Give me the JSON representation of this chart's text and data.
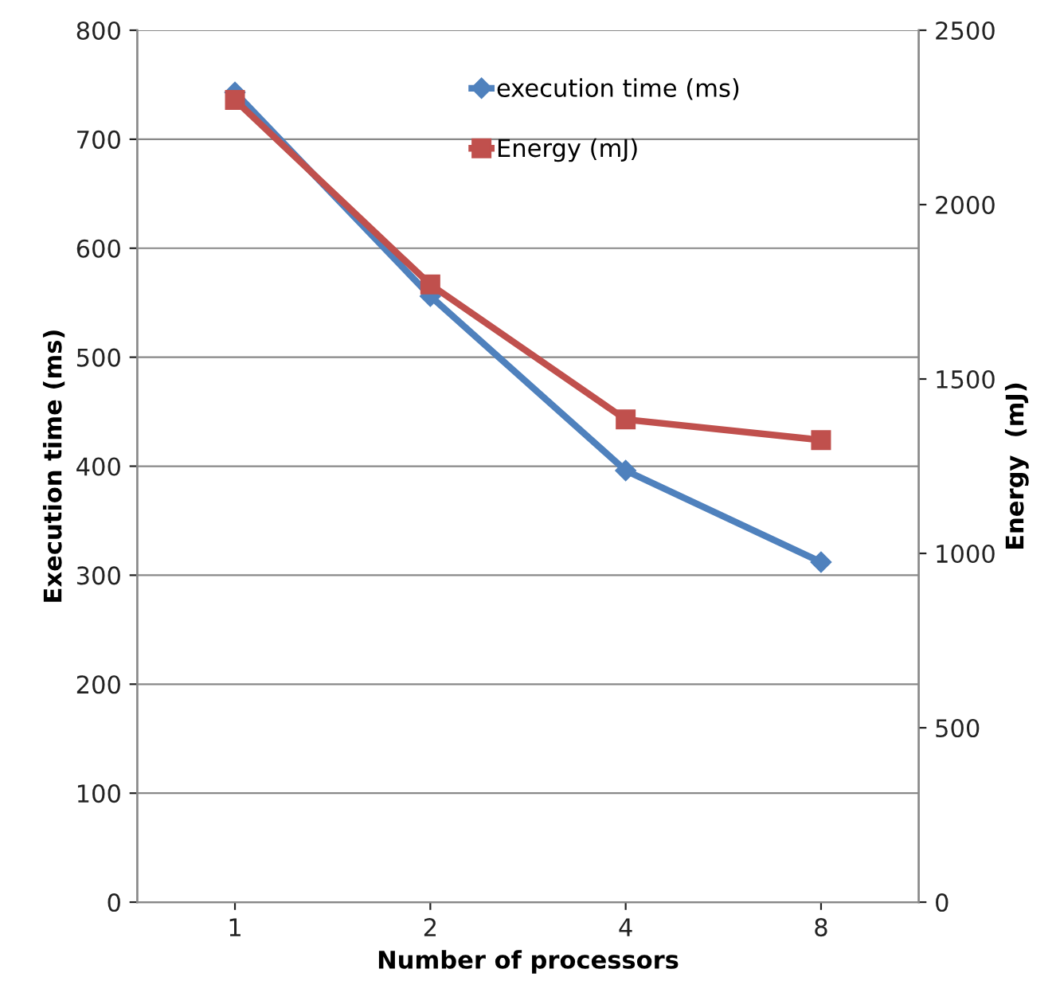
{
  "chart_data": {
    "type": "line",
    "xlabel": "Number of processors",
    "ylabel": "Execution time (ms)",
    "y2label": "Energy  (mJ)",
    "categories": [
      "1",
      "2",
      "4",
      "8"
    ],
    "series": [
      {
        "name": "execution time (ms)",
        "color": "#4f81bd",
        "values": [
          743,
          556,
          396,
          312
        ],
        "marker": "diamond"
      },
      {
        "name": "Energy (mJ)",
        "color": "#c0504d",
        "values": [
          2300,
          1771,
          1384,
          1325
        ],
        "marker": "square",
        "axis": "y2"
      }
    ],
    "ylim": [
      0,
      800
    ],
    "yticks": [
      0,
      100,
      200,
      300,
      400,
      500,
      600,
      700,
      800
    ],
    "y2lim": [
      0,
      2500
    ],
    "y2ticks": [
      0,
      500,
      1000,
      1500,
      2000,
      2500
    ],
    "grid": "y",
    "legend": "top",
    "line_style": "solid"
  }
}
